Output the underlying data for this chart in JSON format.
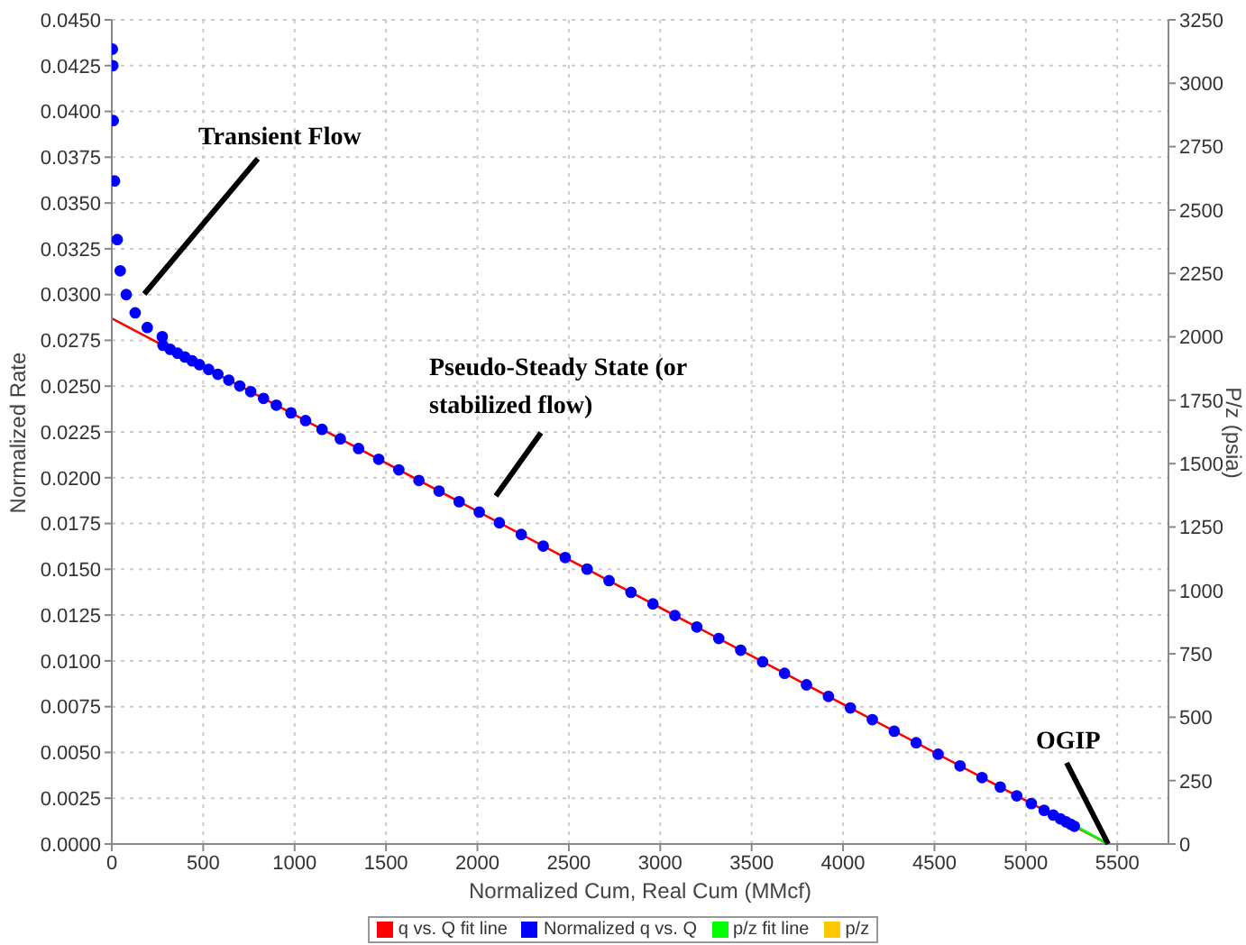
{
  "chart_data": {
    "type": "scatter",
    "xlabel": "Normalized Cum, Real Cum (MMcf)",
    "ylabel": "Normalized Rate",
    "y2label": "P/z (psia)",
    "xlim": [
      0,
      5780
    ],
    "xticks": [
      0,
      500,
      1000,
      1500,
      2000,
      2500,
      3000,
      3500,
      4000,
      4500,
      5000,
      5500
    ],
    "ylim": [
      0,
      0.045
    ],
    "yticks": [
      {
        "value": 0,
        "label": "0.0000"
      },
      {
        "value": 0.0025,
        "label": "0.0025"
      },
      {
        "value": 0.005,
        "label": "0.0050"
      },
      {
        "value": 0.0075,
        "label": "0.0075"
      },
      {
        "value": 0.01,
        "label": "0.0100"
      },
      {
        "value": 0.0125,
        "label": "0.0125"
      },
      {
        "value": 0.015,
        "label": "0.0150"
      },
      {
        "value": 0.0175,
        "label": "0.0175"
      },
      {
        "value": 0.02,
        "label": "0.0200"
      },
      {
        "value": 0.0225,
        "label": "0.0225"
      },
      {
        "value": 0.025,
        "label": "0.0250"
      },
      {
        "value": 0.0275,
        "label": "0.0275"
      },
      {
        "value": 0.03,
        "label": "0.0300"
      },
      {
        "value": 0.0325,
        "label": "0.0325"
      },
      {
        "value": 0.035,
        "label": "0.0350"
      },
      {
        "value": 0.0375,
        "label": "0.0375"
      },
      {
        "value": 0.04,
        "label": "0.0400"
      },
      {
        "value": 0.0425,
        "label": "0.0425"
      },
      {
        "value": 0.045,
        "label": "0.0450"
      }
    ],
    "y2lim": [
      0,
      3250
    ],
    "y2ticks": [
      0,
      250,
      500,
      750,
      1000,
      1250,
      1500,
      1750,
      2000,
      2250,
      2500,
      2750,
      3000,
      3250
    ],
    "grid": true,
    "legend": "bottom",
    "marker": "circle",
    "series": [
      {
        "name": "q vs. Q fit line",
        "type": "line",
        "marker": "none",
        "color": "#ff0000",
        "x": [
          0,
          5450
        ],
        "values": [
          0.0287,
          0
        ]
      },
      {
        "name": "Normalized q vs. Q",
        "color": "#0000ff",
        "x": [
          3,
          6,
          8,
          15,
          30,
          46,
          79,
          128,
          194,
          276,
          280,
          320,
          360,
          400,
          440,
          480,
          530,
          580,
          640,
          700,
          760,
          830,
          900,
          980,
          1060,
          1150,
          1250,
          1350,
          1460,
          1570,
          1680,
          1790,
          1900,
          2010,
          2120,
          2240,
          2360,
          2480,
          2600,
          2720,
          2840,
          2960,
          3080,
          3200,
          3320,
          3440,
          3560,
          3680,
          3800,
          3920,
          4040,
          4160,
          4280,
          4400,
          4520,
          4640,
          4760,
          4860,
          4950,
          5030,
          5100,
          5150,
          5190,
          5220,
          5245,
          5265
        ],
        "values": [
          0.0434,
          0.0425,
          0.0395,
          0.0362,
          0.033,
          0.0313,
          0.03,
          0.029,
          0.0282,
          0.0277,
          0.02723,
          0.02701,
          0.0268,
          0.02659,
          0.02638,
          0.02617,
          0.02591,
          0.02565,
          0.02533,
          0.02501,
          0.0247,
          0.02433,
          0.02396,
          0.02354,
          0.02312,
          0.02264,
          0.02212,
          0.02159,
          0.02101,
          0.02043,
          0.01985,
          0.01927,
          0.01869,
          0.01812,
          0.01754,
          0.0169,
          0.01627,
          0.01564,
          0.01501,
          0.01438,
          0.01374,
          0.01311,
          0.01248,
          0.01185,
          0.01122,
          0.01058,
          0.00995,
          0.00932,
          0.00869,
          0.00806,
          0.00743,
          0.00679,
          0.00616,
          0.00553,
          0.0049,
          0.00427,
          0.00363,
          0.00311,
          0.00263,
          0.00221,
          0.00184,
          0.00158,
          0.00137,
          0.00121,
          0.00108,
          0.00097
        ]
      },
      {
        "name": "p/z fit line",
        "type": "line",
        "marker": "none",
        "axis": "y2",
        "color": "#00ff00",
        "x": [
          5150,
          5450
        ],
        "values": [
          120,
          0
        ]
      },
      {
        "name": "p/z",
        "axis": "y2",
        "color": "#ffc800"
      }
    ],
    "annotations": [
      "Transient Flow",
      "Pseudo-Steady State (or stabilized flow)",
      {
        "text": "OGIP",
        "x": 5450,
        "y": 0
      }
    ]
  }
}
